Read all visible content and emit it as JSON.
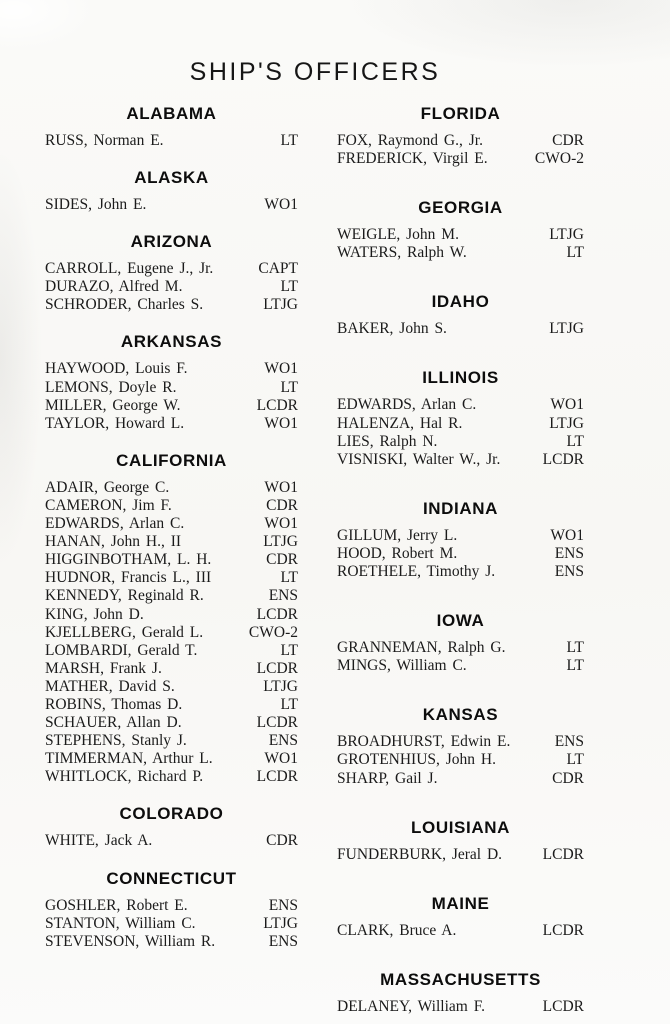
{
  "page": {
    "title": "SHIP'S OFFICERS"
  },
  "columns": [
    {
      "side": "left",
      "sections": [
        {
          "state": "ALABAMA",
          "officers": [
            {
              "name": "RUSS, Norman E.",
              "rank": "LT"
            }
          ]
        },
        {
          "state": "ALASKA",
          "officers": [
            {
              "name": "SIDES, John E.",
              "rank": "WO1"
            }
          ]
        },
        {
          "state": "ARIZONA",
          "officers": [
            {
              "name": "CARROLL, Eugene J., Jr.",
              "rank": "CAPT"
            },
            {
              "name": "DURAZO, Alfred M.",
              "rank": "LT"
            },
            {
              "name": "SCHRODER, Charles S.",
              "rank": "LTJG"
            }
          ]
        },
        {
          "state": "ARKANSAS",
          "officers": [
            {
              "name": "HAYWOOD, Louis F.",
              "rank": "WO1"
            },
            {
              "name": "LEMONS, Doyle R.",
              "rank": "LT"
            },
            {
              "name": "MILLER, George W.",
              "rank": "LCDR"
            },
            {
              "name": "TAYLOR, Howard L.",
              "rank": "WO1"
            }
          ]
        },
        {
          "state": "CALIFORNIA",
          "officers": [
            {
              "name": "ADAIR, George C.",
              "rank": "WO1"
            },
            {
              "name": "CAMERON, Jim F.",
              "rank": "CDR"
            },
            {
              "name": "EDWARDS, Arlan C.",
              "rank": "WO1"
            },
            {
              "name": "HANAN, John H., II",
              "rank": "LTJG"
            },
            {
              "name": "HIGGINBOTHAM, L. H.",
              "rank": "CDR"
            },
            {
              "name": "HUDNOR, Francis L., III",
              "rank": "LT"
            },
            {
              "name": "KENNEDY, Reginald R.",
              "rank": "ENS"
            },
            {
              "name": "KING, John D.",
              "rank": "LCDR"
            },
            {
              "name": "KJELLBERG, Gerald L.",
              "rank": "CWO-2"
            },
            {
              "name": "LOMBARDI, Gerald T.",
              "rank": "LT"
            },
            {
              "name": "MARSH, Frank J.",
              "rank": "LCDR"
            },
            {
              "name": "MATHER, David S.",
              "rank": "LTJG"
            },
            {
              "name": "ROBINS, Thomas D.",
              "rank": "LT"
            },
            {
              "name": "SCHAUER, Allan D.",
              "rank": "LCDR"
            },
            {
              "name": "STEPHENS, Stanly J.",
              "rank": "ENS"
            },
            {
              "name": "TIMMERMAN, Arthur L.",
              "rank": "WO1"
            },
            {
              "name": "WHITLOCK, Richard P.",
              "rank": "LCDR"
            }
          ]
        },
        {
          "state": "COLORADO",
          "officers": [
            {
              "name": "WHITE, Jack A.",
              "rank": "CDR"
            }
          ]
        },
        {
          "state": "CONNECTICUT",
          "officers": [
            {
              "name": "GOSHLER, Robert E.",
              "rank": "ENS"
            },
            {
              "name": "STANTON, William C.",
              "rank": "LTJG"
            },
            {
              "name": "STEVENSON, William R.",
              "rank": "ENS"
            }
          ]
        }
      ]
    },
    {
      "side": "right",
      "sections": [
        {
          "state": "FLORIDA",
          "officers": [
            {
              "name": "FOX, Raymond G., Jr.",
              "rank": "CDR"
            },
            {
              "name": "FREDERICK, Virgil E.",
              "rank": "CWO-2"
            }
          ]
        },
        {
          "state": "GEORGIA",
          "officers": [
            {
              "name": "WEIGLE, John M.",
              "rank": "LTJG"
            },
            {
              "name": "WATERS, Ralph W.",
              "rank": "LT"
            }
          ]
        },
        {
          "state": "IDAHO",
          "officers": [
            {
              "name": "BAKER, John S.",
              "rank": "LTJG"
            }
          ]
        },
        {
          "state": "ILLINOIS",
          "officers": [
            {
              "name": "EDWARDS, Arlan C.",
              "rank": "WO1"
            },
            {
              "name": "HALENZA, Hal R.",
              "rank": "LTJG"
            },
            {
              "name": "LIES, Ralph N.",
              "rank": "LT"
            },
            {
              "name": "VISNISKI, Walter W., Jr.",
              "rank": "LCDR"
            }
          ]
        },
        {
          "state": "INDIANA",
          "officers": [
            {
              "name": "GILLUM, Jerry L.",
              "rank": "WO1"
            },
            {
              "name": "HOOD, Robert M.",
              "rank": "ENS"
            },
            {
              "name": "ROETHELE, Timothy J.",
              "rank": "ENS"
            }
          ]
        },
        {
          "state": "IOWA",
          "officers": [
            {
              "name": "GRANNEMAN, Ralph G.",
              "rank": "LT"
            },
            {
              "name": "MINGS, William C.",
              "rank": "LT"
            }
          ]
        },
        {
          "state": "KANSAS",
          "officers": [
            {
              "name": "BROADHURST, Edwin E.",
              "rank": "ENS"
            },
            {
              "name": "GROTENHIUS, John H.",
              "rank": "LT"
            },
            {
              "name": "SHARP, Gail J.",
              "rank": "CDR"
            }
          ]
        },
        {
          "state": "LOUISIANA",
          "officers": [
            {
              "name": "FUNDERBURK, Jeral D.",
              "rank": "LCDR"
            }
          ]
        },
        {
          "state": "MAINE",
          "officers": [
            {
              "name": "CLARK, Bruce A.",
              "rank": "LCDR"
            }
          ]
        },
        {
          "state": "MASSACHUSETTS",
          "officers": [
            {
              "name": "DELANEY, William F.",
              "rank": "LCDR"
            }
          ]
        }
      ]
    }
  ]
}
